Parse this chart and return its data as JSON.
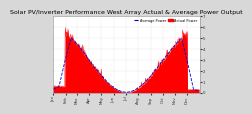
{
  "title": "Solar PV/Inverter Performance West Array Actual & Average Power Output",
  "bg_color": "#d8d8d8",
  "plot_bg": "#ffffff",
  "bar_color": "#ff0000",
  "avg_color": "#0000cc",
  "ylim": [
    0,
    7
  ],
  "num_points": 365,
  "legend_actual": "Actual Power",
  "legend_avg": "Average Power",
  "title_fontsize": 4.5,
  "tick_fontsize": 2.8,
  "month_ticks": [
    0,
    31,
    59,
    90,
    120,
    151,
    181,
    212,
    243,
    273,
    304,
    334
  ],
  "month_labels": [
    "Jan",
    "Feb",
    "Mar",
    "Apr",
    "May",
    "Jun",
    "Jul",
    "Aug",
    "Sep",
    "Oct",
    "Nov",
    "Dec"
  ],
  "yticks": [
    0,
    1,
    2,
    3,
    4,
    5,
    6,
    7
  ],
  "ytick_labels": [
    "0",
    "1",
    "2",
    "3",
    "4",
    "5",
    "6",
    "7"
  ]
}
